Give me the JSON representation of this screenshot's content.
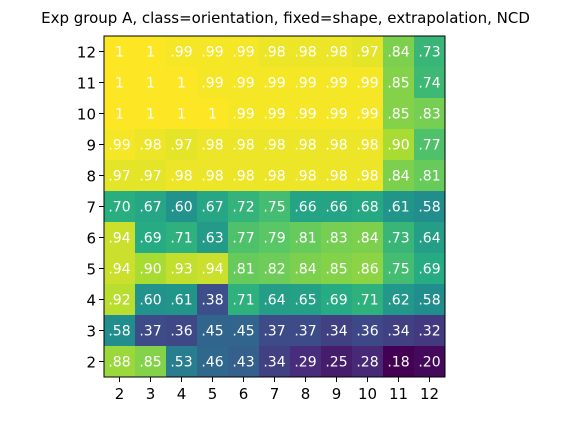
{
  "chart_data": {
    "type": "heatmap",
    "title": "Exp group A, class=orientation, fixed=shape, extrapolation, NCD",
    "xlabel": "",
    "ylabel": "",
    "x_categories": [
      "2",
      "3",
      "4",
      "5",
      "6",
      "7",
      "8",
      "9",
      "10",
      "11",
      "12"
    ],
    "y_categories": [
      "12",
      "11",
      "10",
      "9",
      "8",
      "7",
      "6",
      "5",
      "4",
      "3",
      "2"
    ],
    "values": [
      [
        1.0,
        1.0,
        0.99,
        0.99,
        0.99,
        0.98,
        0.98,
        0.98,
        0.97,
        0.84,
        0.73
      ],
      [
        1.0,
        1.0,
        1.0,
        0.99,
        0.99,
        0.99,
        0.99,
        0.99,
        0.99,
        0.85,
        0.74
      ],
      [
        1.0,
        1.0,
        1.0,
        1.0,
        0.99,
        0.99,
        0.99,
        0.99,
        0.99,
        0.85,
        0.83
      ],
      [
        0.99,
        0.98,
        0.97,
        0.98,
        0.98,
        0.98,
        0.98,
        0.98,
        0.98,
        0.9,
        0.77
      ],
      [
        0.97,
        0.97,
        0.98,
        0.98,
        0.98,
        0.98,
        0.98,
        0.98,
        0.98,
        0.84,
        0.81
      ],
      [
        0.7,
        0.67,
        0.6,
        0.67,
        0.72,
        0.75,
        0.66,
        0.66,
        0.68,
        0.61,
        0.58
      ],
      [
        0.94,
        0.69,
        0.71,
        0.63,
        0.77,
        0.79,
        0.81,
        0.83,
        0.84,
        0.73,
        0.64
      ],
      [
        0.94,
        0.9,
        0.93,
        0.94,
        0.81,
        0.82,
        0.84,
        0.85,
        0.86,
        0.75,
        0.69
      ],
      [
        0.92,
        0.6,
        0.61,
        0.38,
        0.71,
        0.64,
        0.65,
        0.69,
        0.71,
        0.62,
        0.58
      ],
      [
        0.58,
        0.37,
        0.36,
        0.45,
        0.45,
        0.37,
        0.37,
        0.34,
        0.36,
        0.34,
        0.32
      ],
      [
        0.88,
        0.85,
        0.53,
        0.46,
        0.43,
        0.34,
        0.29,
        0.25,
        0.28,
        0.18,
        0.2
      ]
    ],
    "cell_labels": [
      [
        "1",
        "1",
        ".99",
        ".99",
        ".99",
        ".98",
        ".98",
        ".98",
        ".97",
        ".84",
        ".73"
      ],
      [
        "1",
        "1",
        "1",
        ".99",
        ".99",
        ".99",
        ".99",
        ".99",
        ".99",
        ".85",
        ".74"
      ],
      [
        "1",
        "1",
        "1",
        "1",
        ".99",
        ".99",
        ".99",
        ".99",
        ".99",
        ".85",
        ".83"
      ],
      [
        ".99",
        ".98",
        ".97",
        ".98",
        ".98",
        ".98",
        ".98",
        ".98",
        ".98",
        ".90",
        ".77"
      ],
      [
        ".97",
        ".97",
        ".98",
        ".98",
        ".98",
        ".98",
        ".98",
        ".98",
        ".98",
        ".84",
        ".81"
      ],
      [
        ".70",
        ".67",
        ".60",
        ".67",
        ".72",
        ".75",
        ".66",
        ".66",
        ".68",
        ".61",
        ".58"
      ],
      [
        ".94",
        ".69",
        ".71",
        ".63",
        ".77",
        ".79",
        ".81",
        ".83",
        ".84",
        ".73",
        ".64"
      ],
      [
        ".94",
        ".90",
        ".93",
        ".94",
        ".81",
        ".82",
        ".84",
        ".85",
        ".86",
        ".75",
        ".69"
      ],
      [
        ".92",
        ".60",
        ".61",
        ".38",
        ".71",
        ".64",
        ".65",
        ".69",
        ".71",
        ".62",
        ".58"
      ],
      [
        ".58",
        ".37",
        ".36",
        ".45",
        ".45",
        ".37",
        ".37",
        ".34",
        ".36",
        ".34",
        ".32"
      ],
      [
        ".88",
        ".85",
        ".53",
        ".46",
        ".43",
        ".34",
        ".29",
        ".25",
        ".28",
        ".18",
        ".20"
      ]
    ],
    "colormap": "viridis",
    "vmin": 0.18,
    "vmax": 1.0,
    "grid": false,
    "legend": "none"
  }
}
